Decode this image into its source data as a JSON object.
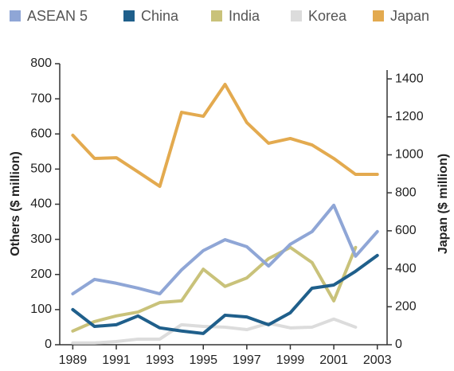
{
  "chart_data": {
    "type": "line",
    "y_label": "Others ($ million)",
    "y2_label": "Japan ($ million)",
    "x": [
      1989,
      1990,
      1991,
      1992,
      1993,
      1994,
      1995,
      1996,
      1997,
      1998,
      1999,
      2000,
      2001,
      2002,
      2003
    ],
    "xlim": [
      1988.4,
      2003.45
    ],
    "xticks": [
      1989,
      1991,
      1993,
      1995,
      1997,
      1999,
      2001,
      2003
    ],
    "ylim": [
      0,
      800
    ],
    "yticks": [
      0,
      100,
      200,
      300,
      400,
      500,
      600,
      700,
      800
    ],
    "y2lim": [
      0,
      1480
    ],
    "y2ticks": [
      0,
      200,
      400,
      600,
      800,
      1000,
      1200,
      1400
    ],
    "grid": false,
    "legend": "top",
    "series": [
      {
        "name": "ASEAN 5",
        "color": "#8fa6d6",
        "values": [
          145,
          186,
          175,
          161,
          145,
          213,
          268,
          299,
          279,
          224,
          286,
          322,
          397,
          252,
          322
        ]
      },
      {
        "name": "China",
        "color": "#1f5f8b",
        "values": [
          100,
          52,
          57,
          82,
          48,
          39,
          32,
          84,
          79,
          57,
          91,
          161,
          170,
          209,
          254
        ]
      },
      {
        "name": "India",
        "color": "#c9c27a",
        "values": [
          39,
          66,
          82,
          93,
          120,
          125,
          215,
          166,
          190,
          245,
          277,
          234,
          125,
          277,
          null
        ]
      },
      {
        "name": "Korea",
        "color": "#dcdcdc",
        "values": [
          5,
          5,
          9,
          16,
          16,
          57,
          52,
          50,
          43,
          61,
          48,
          50,
          73,
          50,
          null
        ]
      },
      {
        "name": "Japan",
        "color": "#e3aa4f",
        "axis": "y2",
        "values": [
          1103,
          981,
          985,
          910,
          834,
          1224,
          1203,
          1371,
          1170,
          1061,
          1086,
          1052,
          981,
          897,
          897
        ]
      }
    ]
  }
}
